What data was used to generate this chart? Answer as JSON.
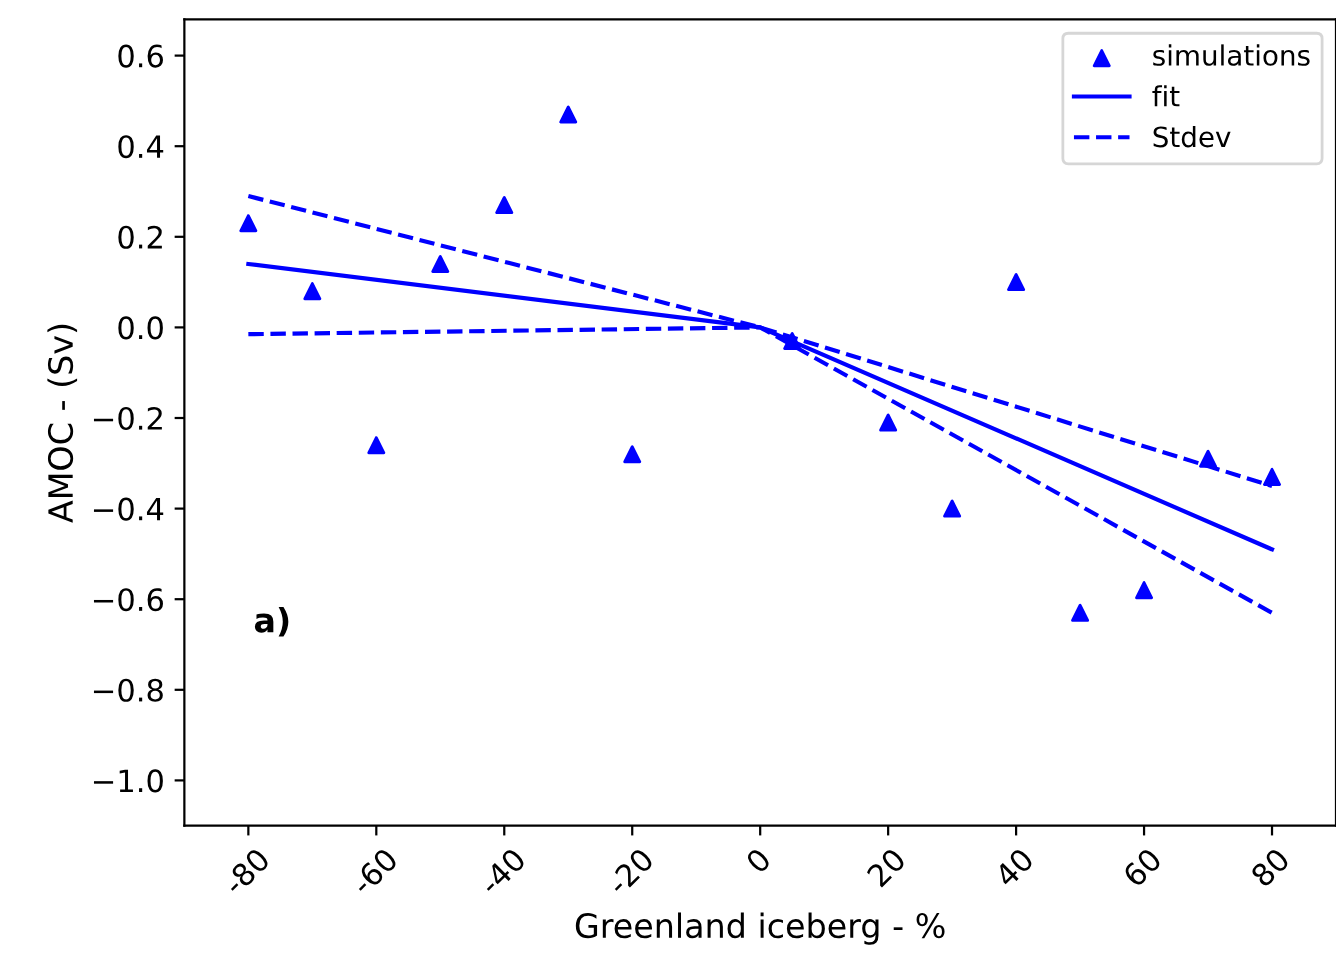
{
  "chart_data": {
    "type": "scatter",
    "xlabel": "Greenland iceberg - %",
    "ylabel": "AMOC - (Sv)",
    "annotations": [
      "a)"
    ],
    "series": [
      {
        "name": "simulations",
        "color": "#0000ff",
        "marker": "triangle",
        "x": [
          -80,
          -70,
          -60,
          -50,
          -40,
          -30,
          -20,
          5,
          20,
          30,
          40,
          50,
          60,
          70,
          80
        ],
        "values": [
          0.23,
          0.08,
          -0.26,
          0.14,
          0.27,
          0.47,
          -0.28,
          -0.03,
          -0.21,
          -0.4,
          0.1,
          -0.63,
          -0.58,
          -0.29,
          -0.33
        ]
      },
      {
        "name": "fit",
        "type": "line",
        "color": "#0000ff",
        "line_style": "solid",
        "x": [
          -80,
          0,
          80
        ],
        "values": [
          0.14,
          0.0,
          -0.49
        ]
      },
      {
        "name": "Stdev",
        "type": "line",
        "color": "#0000ff",
        "line_style": "dashed",
        "x": [
          -80,
          0,
          80
        ],
        "values": [
          0.29,
          0.0,
          -0.35
        ]
      },
      {
        "type": "line",
        "color": "#0000ff",
        "line_style": "dashed",
        "x": [
          -80,
          0,
          80
        ],
        "values": [
          -0.015,
          0.0,
          -0.63
        ]
      }
    ],
    "xlim": [
      -90,
      90
    ],
    "xticks": [
      -80,
      -60,
      -40,
      -20,
      0,
      20,
      40,
      60,
      80
    ],
    "ylim": [
      -1.1,
      0.68
    ],
    "yticks": [
      {
        "value": -1.0,
        "label": "−1.0"
      },
      {
        "value": -0.8,
        "label": "−0.8"
      },
      {
        "value": -0.6,
        "label": "−0.6"
      },
      {
        "value": -0.4,
        "label": "−0.4"
      },
      {
        "value": -0.2,
        "label": "−0.2"
      },
      {
        "value": 0.0,
        "label": "0.0"
      },
      {
        "value": 0.2,
        "label": "0.2"
      },
      {
        "value": 0.4,
        "label": "0.4"
      },
      {
        "value": 0.6,
        "label": "0.6"
      }
    ],
    "legend": "top right",
    "grid": false
  }
}
